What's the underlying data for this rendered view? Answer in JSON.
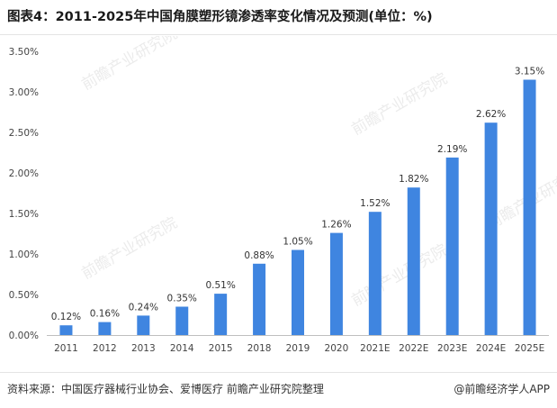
{
  "page": {
    "title": "图表4：2011-2025年中国角膜塑形镜渗透率变化情况及预测(单位：%)",
    "source": "资料来源：中国医疗器械行业协会、爱博医疗 前瞻产业研究院整理",
    "brand": "@前瞻经济学人APP",
    "watermark": "前瞻产业研究院"
  },
  "colors": {
    "bar": "#3f85e0",
    "axis": "#bfbfbf"
  },
  "chart_data": {
    "type": "bar",
    "categories": [
      "2011",
      "2012",
      "2013",
      "2014",
      "2015",
      "2018",
      "2019",
      "2020",
      "2021E",
      "2022E",
      "2023E",
      "2024E",
      "2025E"
    ],
    "values": [
      0.12,
      0.16,
      0.24,
      0.35,
      0.51,
      0.88,
      1.05,
      1.26,
      1.52,
      1.82,
      2.19,
      2.62,
      3.15
    ],
    "value_labels": [
      "0.12%",
      "0.16%",
      "0.24%",
      "0.35%",
      "0.51%",
      "0.88%",
      "1.05%",
      "1.26%",
      "1.52%",
      "1.82%",
      "2.19%",
      "2.62%",
      "3.15%"
    ],
    "y_ticks": [
      0,
      0.5,
      1.0,
      1.5,
      2.0,
      2.5,
      3.0,
      3.5
    ],
    "y_tick_labels": [
      "0.00%",
      "0.50%",
      "1.00%",
      "1.50%",
      "2.00%",
      "2.50%",
      "3.00%",
      "3.50%"
    ],
    "ylim": [
      0,
      3.5
    ],
    "title": "图表4：2011-2025年中国角膜塑形镜渗透率变化情况及预测(单位：%)",
    "xlabel": "",
    "ylabel": "",
    "grid": false,
    "legend": "none"
  }
}
